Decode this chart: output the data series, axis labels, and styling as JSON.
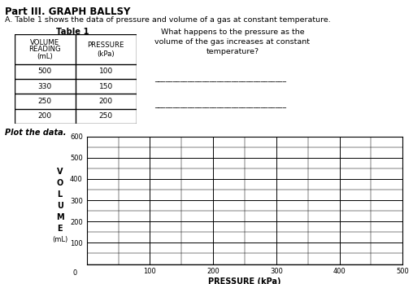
{
  "title": "Part III. GRAPH BALLSY",
  "subtitle": "A. Table 1 shows the data of pressure and volume of a gas at constant temperature.",
  "table_title": "Table 1",
  "table_data": [
    [
      500,
      100
    ],
    [
      330,
      150
    ],
    [
      250,
      200
    ],
    [
      200,
      250
    ]
  ],
  "question_text": "What happens to the pressure as the\nvolume of the gas increases at constant\ntemperature?",
  "plot_label": "Plot the data.",
  "ylabel_letters": [
    "V",
    "O",
    "L",
    "U",
    "M",
    "E"
  ],
  "ylabel_unit": "(mL)",
  "xlabel": "PRESSURE (kPa)",
  "xlim": [
    0,
    500
  ],
  "ylim": [
    0,
    600
  ],
  "bg_color": "#ffffff",
  "text_color": "#000000"
}
